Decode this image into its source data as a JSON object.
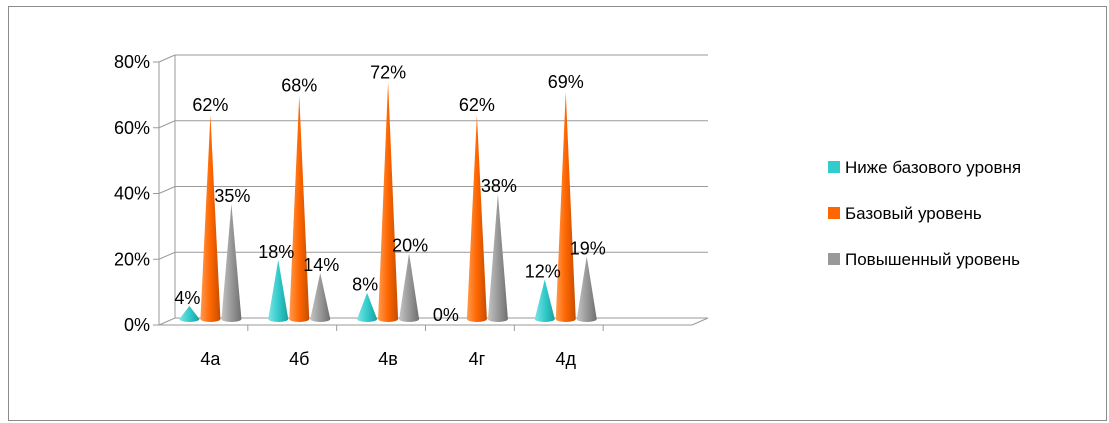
{
  "chart_data": {
    "type": "bar",
    "style": "3d-cone",
    "categories": [
      "4а",
      "4б",
      "4в",
      "4г",
      "4д"
    ],
    "y_ticks": [
      "0%",
      "20%",
      "40%",
      "60%",
      "80%"
    ],
    "ylim": [
      0,
      80
    ],
    "grid": true,
    "legend_position": "right",
    "series": [
      {
        "name": "Ниже базового уровня",
        "color": "#33CCCC",
        "values": [
          4,
          18,
          8,
          0,
          12
        ],
        "labels": [
          "4%",
          "18%",
          "8%",
          "0%",
          "12%"
        ]
      },
      {
        "name": "Базовый уровень",
        "color": "#FF6600",
        "values": [
          62,
          68,
          72,
          62,
          69
        ],
        "labels": [
          "62%",
          "68%",
          "72%",
          "62%",
          "69%"
        ]
      },
      {
        "name": "Повышенный уровень",
        "color": "#999999",
        "values": [
          35,
          14,
          20,
          38,
          19
        ],
        "labels": [
          "35%",
          "14%",
          "20%",
          "38%",
          "19%"
        ]
      }
    ]
  }
}
